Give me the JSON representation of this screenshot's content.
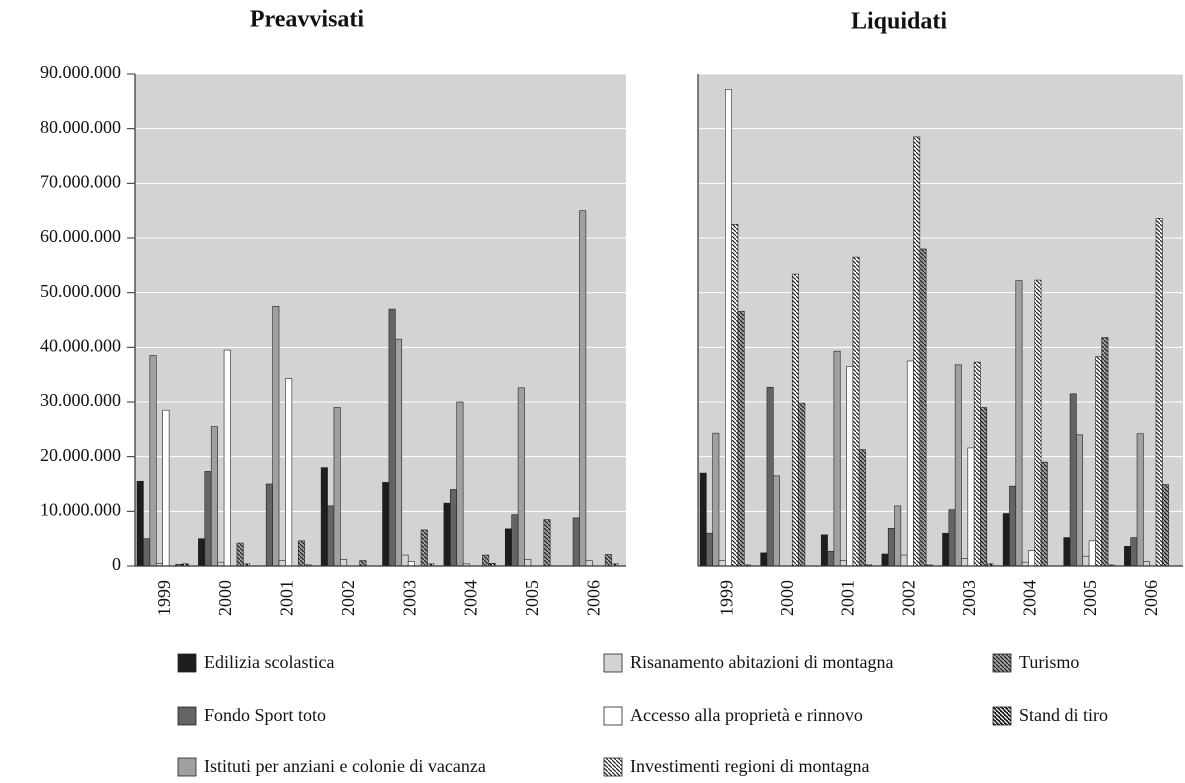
{
  "chart_data": [
    {
      "type": "bar",
      "title": "Preavvisati",
      "categories": [
        "1999",
        "2000",
        "2001",
        "2002",
        "2003",
        "2004",
        "2005",
        "2006"
      ],
      "ylim": [
        0,
        90000000
      ],
      "yticks": [
        0,
        {
          "value": 10000000,
          "label": "10.000.000"
        },
        {
          "value": 20000000,
          "label": "20.000.000"
        },
        {
          "value": 30000000,
          "label": "30.000.000"
        },
        {
          "value": 40000000,
          "label": "40.000.000"
        },
        {
          "value": 50000000,
          "label": "50.000.000"
        },
        {
          "value": 60000000,
          "label": "60.000.000"
        },
        {
          "value": 70000000,
          "label": "70.000.000"
        },
        {
          "value": 80000000,
          "label": "80.000.000"
        },
        {
          "value": 90000000,
          "label": "90.000.000"
        }
      ],
      "grid": true,
      "tick_labels": true,
      "series": [
        {
          "name": "Edilizia scolastica",
          "color": "#1e1e1e",
          "values": [
            15500000,
            5000000,
            0,
            18000000,
            15300000,
            11500000,
            6800000,
            0
          ]
        },
        {
          "name": "Fondo Sport toto",
          "color": "#646464",
          "values": [
            5000000,
            17300000,
            15000000,
            11000000,
            47000000,
            14000000,
            9400000,
            8800000
          ]
        },
        {
          "name": "Istituti per anziani e colonie di vacanza",
          "color": "#a0a0a0",
          "values": [
            38500000,
            25500000,
            47500000,
            29000000,
            41500000,
            30000000,
            32600000,
            65000000
          ]
        },
        {
          "name": "Risanamento abitazioni di montagna",
          "color": "#d4d4d4",
          "values": [
            500000,
            700000,
            1000000,
            1200000,
            2000000,
            400000,
            1200000,
            1000000
          ]
        },
        {
          "name": "Accesso alla proprietà e rinnovo",
          "color": "#ffffff",
          "values": [
            28500000,
            39500000,
            34300000,
            0,
            800000,
            0,
            0,
            0
          ]
        },
        {
          "name": "Investimenti regioni di montagna",
          "color": "#ffffff",
          "pattern": "hatch",
          "values": [
            0,
            0,
            0,
            0,
            0,
            0,
            0,
            0
          ]
        },
        {
          "name": "Turismo",
          "color": "#a0a0a0",
          "pattern": "hatch",
          "values": [
            300000,
            4200000,
            4600000,
            1000000,
            6600000,
            2000000,
            8500000,
            2100000
          ]
        },
        {
          "name": "Stand di tiro",
          "color": "#1e1e1e",
          "pattern": "hatch",
          "values": [
            400000,
            400000,
            200000,
            0,
            400000,
            500000,
            0,
            400000
          ]
        }
      ]
    },
    {
      "type": "bar",
      "title": "Liquidati",
      "categories": [
        "1999",
        "2000",
        "2001",
        "2002",
        "2003",
        "2004",
        "2005",
        "2006"
      ],
      "ylim": [
        0,
        90000000
      ],
      "yticks": [
        0,
        10000000,
        20000000,
        30000000,
        40000000,
        50000000,
        60000000,
        70000000,
        80000000,
        90000000
      ],
      "grid": true,
      "tick_labels": false,
      "series": [
        {
          "values": [
            17000000,
            2400000,
            5700000,
            2200000,
            6000000,
            9600000,
            5200000,
            3600000
          ]
        },
        {
          "values": [
            6000000,
            32700000,
            2700000,
            6900000,
            10300000,
            14600000,
            31500000,
            5200000
          ]
        },
        {
          "values": [
            24300000,
            16500000,
            39300000,
            11000000,
            36800000,
            52200000,
            24000000,
            24200000
          ]
        },
        {
          "values": [
            1000000,
            0,
            1000000,
            2000000,
            1400000,
            700000,
            1800000,
            800000
          ]
        },
        {
          "values": [
            87200000,
            0,
            36500000,
            37500000,
            21600000,
            2800000,
            4600000,
            0
          ]
        },
        {
          "values": [
            62500000,
            53400000,
            56500000,
            78500000,
            37300000,
            52300000,
            38300000,
            63600000
          ]
        },
        {
          "values": [
            46600000,
            29800000,
            21300000,
            58000000,
            29000000,
            19000000,
            41800000,
            14900000
          ]
        },
        {
          "values": [
            200000,
            0,
            200000,
            200000,
            400000,
            0,
            200000,
            0
          ]
        }
      ]
    }
  ]
}
